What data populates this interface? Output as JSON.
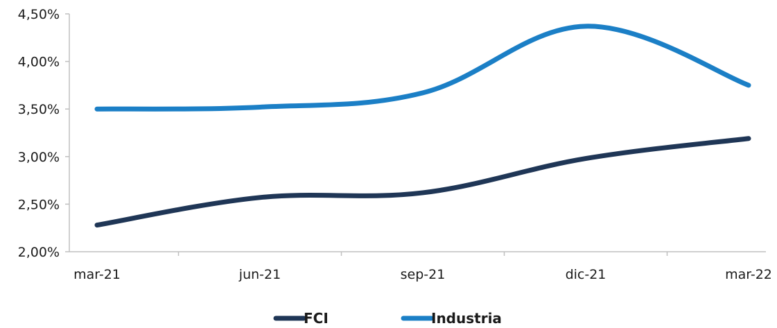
{
  "chart_data": {
    "type": "line",
    "categories": [
      "mar-21",
      "jun-21",
      "sep-21",
      "dic-21",
      "mar-22"
    ],
    "series": [
      {
        "name": "FCI",
        "values": [
          2.28,
          2.57,
          2.62,
          2.98,
          3.19
        ],
        "color": "#1f3656"
      },
      {
        "name": "Industria",
        "values": [
          3.5,
          3.52,
          3.67,
          4.37,
          3.75
        ],
        "color": "#1b7fc6"
      }
    ],
    "ylim": [
      2.0,
      4.5
    ],
    "yticks": [
      "2,00%",
      "2,50%",
      "3,00%",
      "3,50%",
      "4,00%",
      "4,50%"
    ],
    "ytick_values": [
      2.0,
      2.5,
      3.0,
      3.5,
      4.0,
      4.5
    ],
    "grid": false,
    "legend_position": "bottom",
    "smooth": true
  },
  "colors": {
    "axis": "#bfbfbf",
    "text": "#1a1a1a"
  }
}
